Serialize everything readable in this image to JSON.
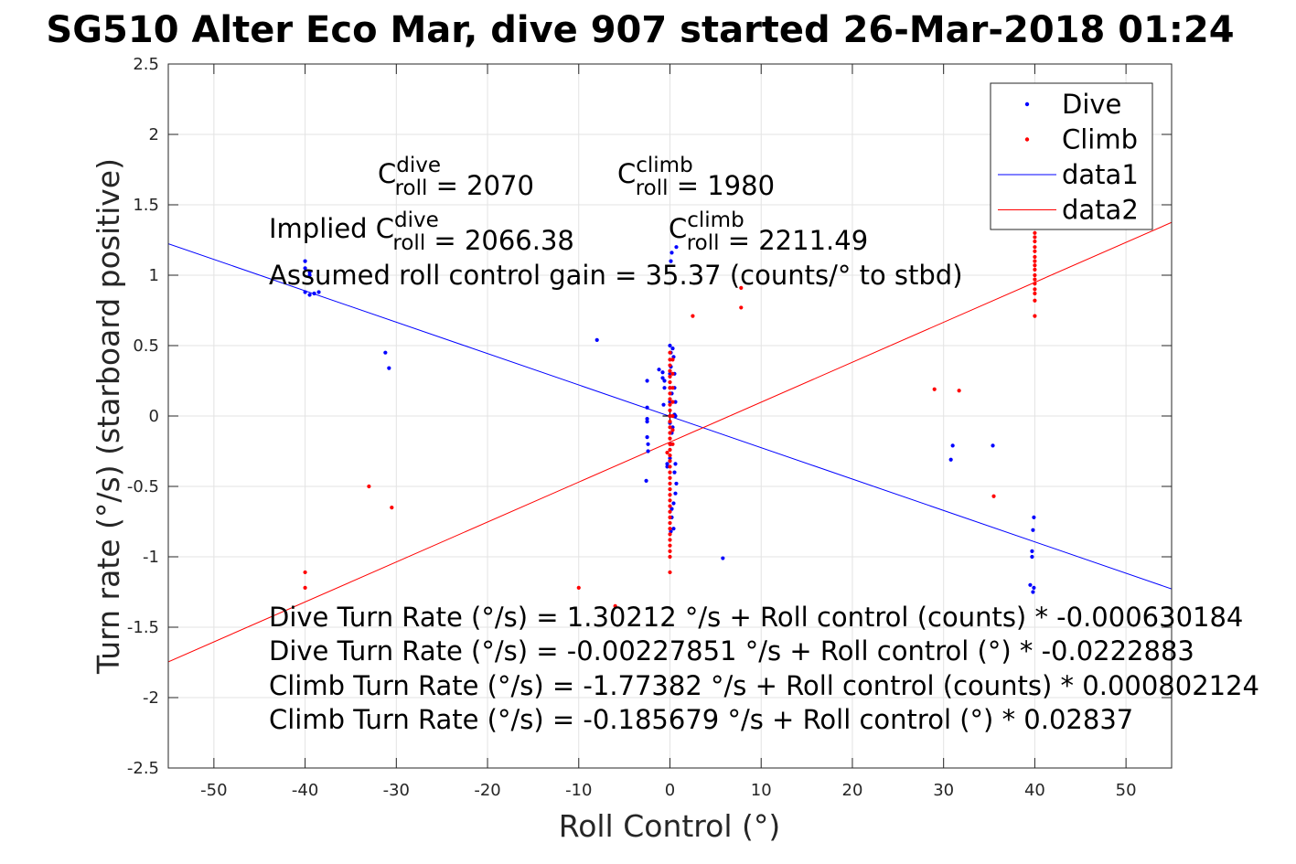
{
  "chart_data": {
    "type": "scatter",
    "title": "SG510 Alter Eco Mar, dive 907 started 26-Mar-2018 01:24",
    "xlabel": "Roll Control (°)",
    "ylabel": "Turn rate (°/s) (starboard positive)",
    "xlim": [
      -55,
      55
    ],
    "ylim": [
      -2.5,
      2.5
    ],
    "grid": true,
    "legend_position": "top-right",
    "x_ticks": [
      -50,
      -40,
      -30,
      -20,
      -10,
      0,
      10,
      20,
      30,
      40,
      50
    ],
    "x_tick_labels": [
      "-50",
      "-40",
      "-30",
      "-20",
      "-10",
      "0",
      "10",
      "20",
      "30",
      "40",
      "50"
    ],
    "y_ticks": [
      -2.5,
      -2,
      -1.5,
      -1,
      -0.5,
      0,
      0.5,
      1,
      1.5,
      2,
      2.5
    ],
    "y_tick_labels": [
      "-2.5",
      "-2",
      "-1.5",
      "-1",
      "-0.5",
      "0",
      "0.5",
      "1",
      "1.5",
      "2",
      "2.5"
    ],
    "series": [
      {
        "name": "Dive",
        "kind": "points",
        "color": "#0000ff",
        "x": [
          -40,
          -40,
          -39.5,
          -39.5,
          -40,
          -39.5,
          -39,
          -38.5,
          -31.2,
          -30.8,
          -8,
          -2.5,
          -2.5,
          -2.5,
          -2.5,
          -2.5,
          -2.4,
          -2.4,
          -2.6,
          -1.2,
          -0.8,
          -0.8,
          -0.6,
          -0.6,
          -0.7,
          0,
          0.1,
          0.1,
          0,
          0,
          0,
          0,
          0,
          0.3,
          0.4,
          0.5,
          0.5,
          0.6,
          0.2,
          0.3,
          0.5,
          0.6,
          0.6,
          0.2,
          0.1,
          0,
          -0.3,
          -0.3,
          0.5,
          0.7,
          0.6,
          0.4,
          0.2,
          0.2,
          0.4,
          0.1,
          0.1,
          0.2,
          0.7,
          5.8,
          31,
          30.8,
          35.4,
          39.9,
          39.8,
          39.7,
          39.7,
          39.5,
          39.9,
          39.8
        ],
        "y": [
          1.1,
          1.05,
          1.02,
          1.0,
          0.88,
          0.86,
          0.87,
          0.88,
          0.45,
          0.34,
          0.54,
          0.25,
          0.06,
          -0.02,
          -0.04,
          -0.15,
          -0.2,
          -0.25,
          -0.46,
          0.33,
          0.31,
          0.27,
          0.25,
          0.2,
          0.08,
          0.5,
          0.45,
          0.35,
          0.3,
          0.2,
          0.1,
          0.0,
          -0.05,
          0.48,
          0.42,
          0.3,
          0.2,
          0.1,
          0.16,
          -0.08,
          0.01,
          0.0,
          -0.34,
          -0.12,
          -0.2,
          -0.3,
          -0.34,
          -0.36,
          -0.4,
          -0.48,
          -0.55,
          -0.62,
          -0.66,
          -0.72,
          -0.8,
          -0.82,
          1.1,
          1.16,
          1.2,
          -1.01,
          -0.21,
          -0.31,
          -0.21,
          -0.72,
          -0.81,
          -0.96,
          -1.0,
          -1.2,
          -1.22,
          -1.25
        ]
      },
      {
        "name": "Climb",
        "kind": "points",
        "color": "#ff0000",
        "x": [
          -40,
          -40,
          -33,
          -30.5,
          -10,
          -6,
          0,
          0,
          0,
          0,
          0,
          0,
          0,
          0,
          0,
          0,
          0,
          0,
          0,
          0,
          0,
          0,
          0,
          0,
          0,
          0,
          0,
          0,
          0,
          0,
          0,
          0,
          0,
          0,
          0,
          0,
          0,
          0,
          0,
          0,
          0,
          0,
          0,
          0,
          0.3,
          0.3,
          0.3,
          0.3,
          0.3,
          0.3,
          0.3,
          -0.3,
          2.5,
          7.8,
          7.8,
          29,
          31.7,
          35.5,
          40,
          40,
          40,
          40,
          40,
          40,
          40,
          40,
          40,
          40,
          40,
          40,
          40,
          40,
          40,
          40,
          40,
          40
        ],
        "y": [
          -1.11,
          -1.22,
          -0.5,
          -0.65,
          -1.22,
          -1.35,
          0.4,
          0.36,
          0.32,
          0.28,
          0.24,
          0.2,
          0.16,
          0.12,
          0.08,
          0.04,
          0.0,
          -0.04,
          -0.08,
          -0.12,
          -0.16,
          -0.2,
          -0.24,
          -0.28,
          -0.32,
          -0.36,
          -0.4,
          -0.44,
          -0.48,
          -0.52,
          -0.56,
          -0.6,
          -0.64,
          -0.68,
          -0.72,
          -0.76,
          -0.8,
          -0.84,
          -0.88,
          -0.92,
          -0.96,
          -1.0,
          -1.11,
          0.45,
          0.4,
          0.3,
          0.2,
          0.1,
          0.0,
          -0.1,
          -0.2,
          -0.26,
          0.71,
          0.77,
          0.91,
          0.19,
          0.18,
          -0.57,
          1.4,
          1.35,
          1.3,
          1.27,
          1.24,
          1.2,
          1.17,
          1.13,
          1.1,
          1.07,
          1.04,
          1.0,
          0.97,
          0.94,
          0.9,
          0.87,
          0.82,
          0.71
        ]
      },
      {
        "name": "data1",
        "kind": "line",
        "color": "#0000ff",
        "x": [
          -55,
          55
        ],
        "y": [
          1.2235,
          -1.2281
        ]
      },
      {
        "name": "data2",
        "kind": "line",
        "color": "#ff0000",
        "x": [
          -55,
          55
        ],
        "y": [
          -1.7461,
          1.3749
        ]
      }
    ],
    "annotations": [
      {
        "parts": [
          {
            "t": "C"
          },
          {
            "sup": "dive",
            "sub": "roll"
          },
          {
            "t": " = 2070"
          }
        ]
      },
      {
        "parts": [
          {
            "t": "C"
          },
          {
            "sup": "climb",
            "sub": "roll"
          },
          {
            "t": " = 1980"
          }
        ]
      },
      {
        "parts": [
          {
            "t": "Implied C"
          },
          {
            "sup": "dive",
            "sub": "roll"
          },
          {
            "t": " = 2066.38"
          }
        ]
      },
      {
        "parts": [
          {
            "t": "C"
          },
          {
            "sup": "climb",
            "sub": "roll"
          },
          {
            "t": " = 2211.49"
          }
        ]
      },
      {
        "parts": [
          {
            "t": "Assumed roll control gain = 35.37 (counts/° to stbd)"
          }
        ]
      },
      {
        "parts": [
          {
            "t": "Dive Turn Rate (°/s) = 1.30212 °/s + Roll control (counts) * -0.000630184"
          }
        ]
      },
      {
        "parts": [
          {
            "t": "Dive Turn Rate (°/s) = -0.00227851 °/s + Roll control (°) * -0.0222883"
          }
        ]
      },
      {
        "parts": [
          {
            "t": "Climb Turn Rate (°/s) = -1.77382 °/s + Roll control (counts) * 0.000802124"
          }
        ]
      },
      {
        "parts": [
          {
            "t": "Climb Turn Rate (°/s) = -0.185679 °/s + Roll control (°) * 0.02837"
          }
        ]
      }
    ]
  }
}
